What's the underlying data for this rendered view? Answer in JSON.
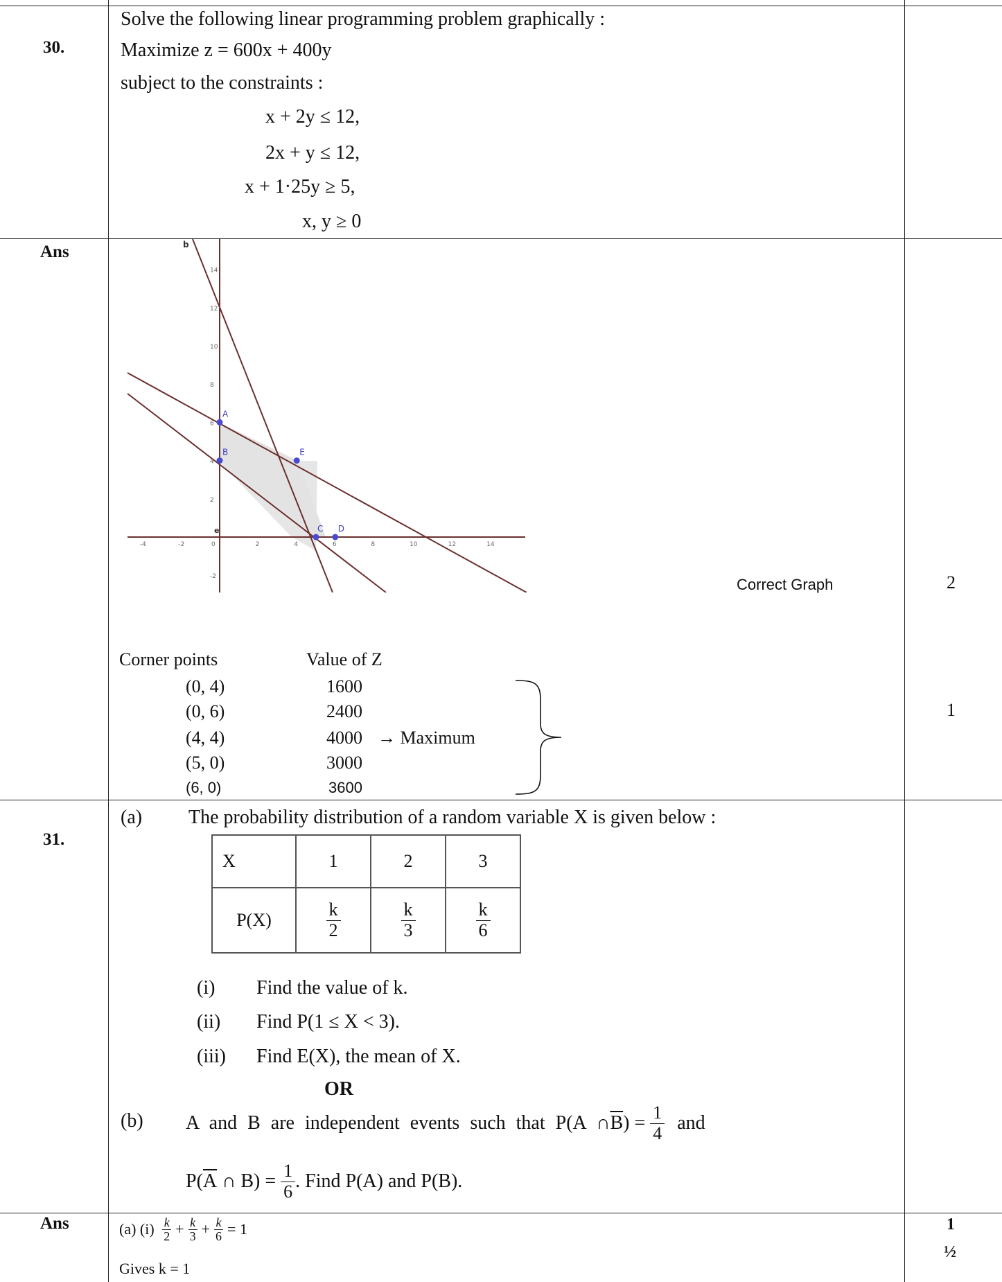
{
  "q30": {
    "number": "30.",
    "lines": [
      "Solve the following linear programming problem graphically :",
      "Maximize z = 600x + 400y",
      "subject to the constraints :",
      "x + 2y ≤ 12,",
      "2x + y ≤ 12,",
      "x + 1·25y ≥ 5,",
      "x, y ≥ 0"
    ]
  },
  "ans30": {
    "label": "Ans",
    "graph_caption": "Correct Graph",
    "graph_marks": "2",
    "graph": {
      "x_ticks": [
        "-4",
        "-2",
        "0",
        "2",
        "4",
        "6",
        "8",
        "10",
        "12",
        "14"
      ],
      "y_ticks": [
        "14",
        "12",
        "10",
        "8",
        "6",
        "4",
        "2",
        "-2"
      ],
      "points": [
        {
          "label": "A",
          "x": 0,
          "y": 6
        },
        {
          "label": "B",
          "x": 0,
          "y": 4
        },
        {
          "label": "E",
          "x": 4,
          "y": 4
        },
        {
          "label": "C",
          "x": 5,
          "y": 0
        },
        {
          "label": "D",
          "x": 6,
          "y": 0
        }
      ],
      "line_labels": [
        "b",
        "e"
      ]
    },
    "table": {
      "col1_header": "Corner points",
      "col2_header": "Value of Z",
      "rows": [
        {
          "point": "(0, 4)",
          "value": "1600",
          "note": ""
        },
        {
          "point": "(0, 6)",
          "value": "2400",
          "note": ""
        },
        {
          "point": "(4, 4)",
          "value": "4000",
          "note": "→ Maximum"
        },
        {
          "point": "(5, 0)",
          "value": "3000",
          "note": ""
        },
        {
          "point": "(6, 0)",
          "value": "3600",
          "note": ""
        }
      ]
    },
    "table_marks": "1"
  },
  "q31": {
    "number": "31.",
    "part_a_label": "(a)",
    "part_a_text": "The probability distribution of a random variable X is given below :",
    "prob_table": {
      "row1": [
        "X",
        "1",
        "2",
        "3"
      ],
      "row2_label": "P(X)",
      "row2_fracs": [
        {
          "n": "k",
          "d": "2"
        },
        {
          "n": "k",
          "d": "3"
        },
        {
          "n": "k",
          "d": "6"
        }
      ]
    },
    "sub_parts": [
      {
        "label": "(i)",
        "text": "Find the value of k."
      },
      {
        "label": "(ii)",
        "text": "Find P(1 ≤ X < 3)."
      },
      {
        "label": "(iii)",
        "text": "Find E(X), the mean of X."
      }
    ],
    "or_text": "OR",
    "part_b_label": "(b)",
    "part_b_text1": "A and B are independent events such that P(A ∩ ",
    "part_b_B": "B",
    "part_b_text2": ") = ",
    "part_b_frac1": {
      "n": "1",
      "d": "4"
    },
    "part_b_and": "and",
    "part_b_text3": "P(",
    "part_b_A": "A",
    "part_b_text4": " ∩ B) = ",
    "part_b_frac2": {
      "n": "1",
      "d": "6"
    },
    "part_b_text5": ". Find P(A) and P(B)."
  },
  "ans31": {
    "label": "Ans",
    "line1_prefix": "(a) (i) ",
    "line1_fracs": [
      {
        "n": "k",
        "d": "2"
      },
      {
        "n": "k",
        "d": "3"
      },
      {
        "n": "k",
        "d": "6"
      }
    ],
    "line1_plus": "+",
    "line1_eq": "= 1",
    "line2": "Gives k = 1",
    "marks1": "1",
    "marks2": "½"
  }
}
